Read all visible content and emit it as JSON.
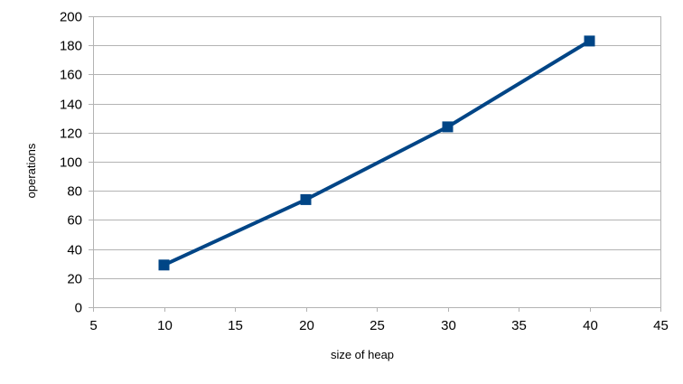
{
  "chart_data": {
    "type": "scatter",
    "title": "",
    "xlabel": "size of heap",
    "ylabel": "operations",
    "xlim": [
      5,
      45
    ],
    "ylim": [
      0,
      200
    ],
    "x_ticks": [
      5,
      10,
      15,
      20,
      25,
      30,
      35,
      40,
      45
    ],
    "y_ticks": [
      0,
      20,
      40,
      60,
      80,
      100,
      120,
      140,
      160,
      180,
      200
    ],
    "grid": "horizontal",
    "legend": "none",
    "series": [
      {
        "x": [
          10,
          20,
          30,
          40
        ],
        "values": [
          29,
          74,
          124,
          183
        ],
        "marker": "square",
        "line": true,
        "color": "#004586"
      }
    ]
  },
  "colors": {
    "series": "#004586",
    "grid": "#b3b3b3",
    "axis": "#b3b3b3",
    "text": "#000000"
  }
}
